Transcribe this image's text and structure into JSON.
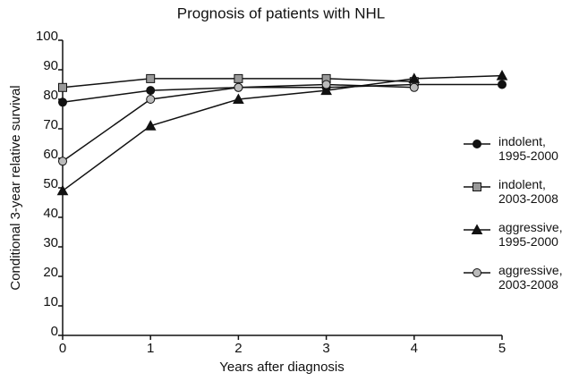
{
  "chart_data": {
    "type": "line",
    "title": "Prognosis of patients with NHL",
    "x_label": "Years after diagnosis",
    "y_label": "Conditional 3-year relative survival",
    "x": [
      0,
      1,
      2,
      3,
      4,
      5
    ],
    "xlim": [
      0,
      5
    ],
    "xticks": [
      0,
      1,
      2,
      3,
      4,
      5
    ],
    "ylim": [
      0,
      100
    ],
    "yticks": [
      0,
      10,
      20,
      30,
      40,
      50,
      60,
      70,
      80,
      90,
      100
    ],
    "series": [
      {
        "name": "indolent, 1995-2000",
        "color": "#111111",
        "marker": "circle",
        "values": [
          79,
          83,
          84,
          84,
          85,
          85
        ]
      },
      {
        "name": "indolent, 2003-2008",
        "color": "#999999",
        "marker": "square",
        "values": [
          84,
          87,
          87,
          87,
          86,
          null
        ]
      },
      {
        "name": "aggressive, 1995-2000",
        "color": "#111111",
        "marker": "triangle",
        "values": [
          49,
          71,
          80,
          83,
          87,
          88
        ]
      },
      {
        "name": "aggressive, 2003-2008",
        "color": "#bbbbbb",
        "marker": "circle",
        "values": [
          59,
          80,
          84,
          85,
          84,
          null
        ]
      }
    ]
  }
}
